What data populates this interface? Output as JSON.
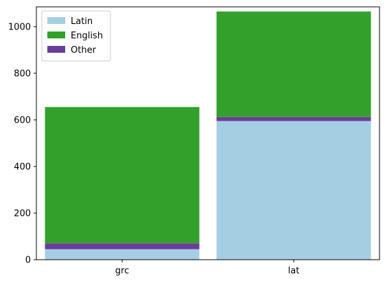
{
  "chart_data": {
    "type": "bar",
    "stacked": true,
    "categories": [
      "grc",
      "lat"
    ],
    "series": [
      {
        "name": "Latin",
        "values": [
          45,
          595
        ],
        "color": "#a6cee3"
      },
      {
        "name": "Other",
        "values": [
          25,
          17
        ],
        "color": "#6a3d9a"
      },
      {
        "name": "English",
        "values": [
          585,
          453
        ],
        "color": "#33a02c"
      }
    ],
    "legend_order": [
      "Latin",
      "English",
      "Other"
    ],
    "legend_position": "top-left",
    "ylim": [
      0,
      1085
    ],
    "yticks": [
      0,
      200,
      400,
      600,
      800,
      1000
    ],
    "grid": false,
    "title": "",
    "xlabel": "",
    "ylabel": ""
  }
}
